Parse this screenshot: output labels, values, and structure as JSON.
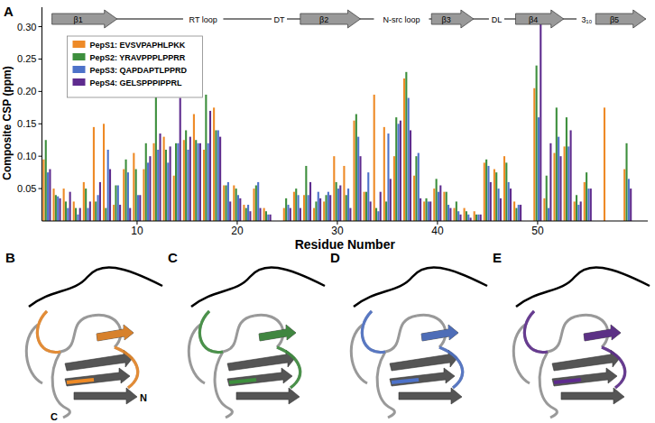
{
  "chart_data": {
    "type": "bar",
    "panel_label": "A",
    "x_label": "Residue Number",
    "y_label": "Composite CSP (ppm)",
    "x": [
      1,
      2,
      3,
      4,
      5,
      6,
      7,
      8,
      9,
      10,
      11,
      12,
      13,
      14,
      15,
      16,
      17,
      18,
      19,
      20,
      21,
      22,
      23,
      24,
      25,
      26,
      27,
      28,
      29,
      30,
      31,
      32,
      33,
      34,
      35,
      36,
      37,
      38,
      39,
      40,
      41,
      42,
      43,
      44,
      45,
      46,
      47,
      48,
      49,
      50,
      51,
      52,
      53,
      54,
      55,
      56,
      57,
      58,
      59
    ],
    "series": [
      {
        "name": "PepS1: EVSVPAPHLPKK",
        "color": "#ee8a26",
        "values": [
          0.095,
          0.05,
          0.05,
          0.03,
          0.06,
          0.145,
          0.15,
          0.025,
          0.08,
          0.105,
          0.08,
          0.12,
          0.13,
          0.07,
          0.125,
          0.165,
          0.11,
          0.175,
          0.055,
          0.055,
          0.025,
          0.05,
          0.02,
          null,
          0.02,
          0.045,
          0.04,
          0.02,
          0.03,
          0.1,
          0.085,
          0.155,
          0.045,
          0.195,
          0.145,
          0.1,
          0.22,
          0.07,
          0.03,
          0.05,
          0.045,
          0.02,
          0.02,
          0.015,
          0.09,
          0.08,
          0.1,
          0.03,
          null,
          0.205,
          0.035,
          0.105,
          0.115,
          0.03,
          0.06,
          null,
          0.175,
          null,
          0.08
        ]
      },
      {
        "name": "PepS2: YRAVPPPLPPRR",
        "color": "#3d8f3d",
        "values": [
          0.125,
          0.04,
          0.03,
          0.02,
          0.05,
          0.03,
          0.02,
          0.055,
          0.095,
          0.08,
          0.12,
          0.21,
          0.11,
          0.12,
          0.14,
          0.125,
          0.195,
          0.14,
          0.055,
          0.05,
          0.02,
          0.055,
          0.015,
          null,
          0.035,
          0.05,
          0.085,
          0.03,
          0.04,
          0.06,
          0.04,
          0.165,
          0.045,
          0.02,
          0.03,
          0.16,
          0.23,
          0.1,
          0.035,
          0.065,
          0.045,
          0.03,
          0.015,
          0.01,
          0.095,
          0.075,
          0.09,
          0.02,
          null,
          0.24,
          0.07,
          0.175,
          0.16,
          0.04,
          0.075,
          null,
          null,
          null,
          0.12
        ]
      },
      {
        "name": "PepS3: QAPDAPTLPPRD",
        "color": "#4d72c9",
        "values": [
          0.075,
          0.038,
          0.02,
          0.01,
          0.02,
          0.04,
          0.11,
          0.055,
          0.075,
          0.04,
          0.09,
          0.11,
          0.09,
          0.12,
          0.11,
          0.12,
          0.12,
          0.14,
          0.06,
          0.04,
          0.025,
          0.06,
          0.01,
          null,
          0.025,
          0.04,
          0.04,
          0.045,
          0.045,
          0.05,
          0.05,
          0.13,
          0.075,
          0.015,
          0.135,
          0.15,
          0.19,
          0.105,
          0.03,
          0.045,
          0.025,
          0.015,
          0.01,
          0.01,
          0.085,
          0.05,
          0.06,
          0.025,
          null,
          0.16,
          0.02,
          0.13,
          0.115,
          0.025,
          0.05,
          null,
          null,
          null,
          0.065
        ]
      },
      {
        "name": "PepS4: GELSPPPIPPRL",
        "color": "#5e2b8e",
        "values": [
          0.08,
          0.035,
          0.045,
          0.02,
          0.03,
          0.06,
          0.08,
          0.025,
          0.02,
          0.04,
          0.1,
          0.135,
          0.115,
          0.19,
          0.13,
          0.12,
          0.17,
          0.13,
          0.03,
          0.035,
          0.015,
          0.02,
          0.01,
          null,
          0.02,
          0.02,
          0.06,
          0.035,
          0.04,
          0.055,
          0.02,
          0.1,
          0.03,
          0.045,
          0.065,
          0.155,
          0.14,
          0.035,
          0.03,
          0.055,
          0.02,
          0.01,
          0.005,
          0.01,
          0.06,
          0.035,
          0.05,
          0.025,
          null,
          0.32,
          0.12,
          0.1,
          0.14,
          0.03,
          0.05,
          null,
          null,
          null,
          0.05
        ]
      }
    ],
    "xlim": [
      0.5,
      61
    ],
    "xticks": [
      10,
      20,
      30,
      40,
      50
    ],
    "ylim": [
      0,
      0.33
    ],
    "yticks": [
      0.05,
      {
        "value": 0.1,
        "label": "0.10"
      },
      0.15,
      {
        "value": 0.2,
        "label": "0.20"
      },
      0.25,
      {
        "value": 0.3,
        "label": "0.30"
      }
    ],
    "grid": false,
    "legend": "upper left",
    "annotations": [
      {
        "text": "β1",
        "start": 1.5,
        "end": 8,
        "shape": "arrow"
      },
      {
        "text": "RT loop",
        "x": 16.6
      },
      {
        "text": "DT",
        "x": 24.2
      },
      {
        "text": "β2",
        "start": 26.3,
        "end": 32.3,
        "shape": "arrow"
      },
      {
        "text": "N-src loop",
        "x": 36.4
      },
      {
        "text": "β3",
        "start": 39.4,
        "end": 43.6,
        "shape": "arrow"
      },
      {
        "text": "DL",
        "x": 45.9
      },
      {
        "text": "β4",
        "start": 47.8,
        "end": 52.6,
        "shape": "arrow"
      },
      {
        "text": "3₁₀",
        "x": 54.9
      },
      {
        "text": "β5",
        "start": 55.8,
        "end": 60.8,
        "shape": "arrow"
      }
    ]
  },
  "structure_panels": {
    "labels": [
      "B",
      "C",
      "D",
      "E"
    ],
    "termini": [
      "N",
      "C"
    ]
  }
}
